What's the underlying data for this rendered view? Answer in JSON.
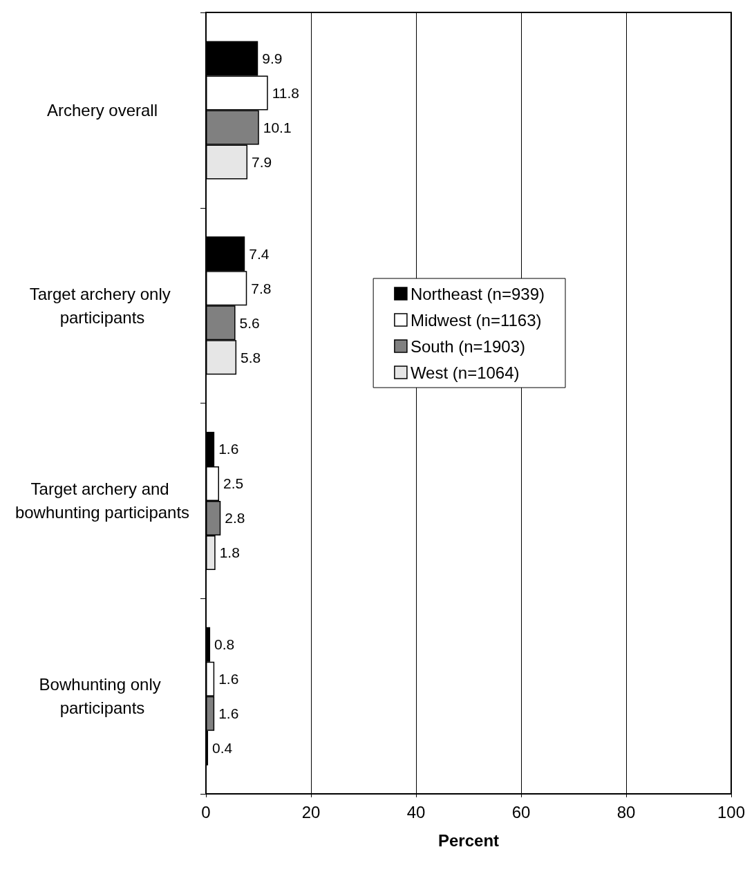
{
  "chart_data": {
    "type": "bar",
    "orientation": "horizontal",
    "xlabel": "Percent",
    "categories": [
      "Archery overall",
      "Target archery only participants",
      "Target archery and bowhunting participants",
      "Bowhunting only participants"
    ],
    "series": [
      {
        "name": "Northeast (n=939)",
        "color": "#000000",
        "values": [
          9.9,
          7.4,
          1.6,
          0.8
        ]
      },
      {
        "name": "Midwest (n=1163)",
        "color": "#ffffff",
        "values": [
          11.8,
          7.8,
          2.5,
          1.6
        ]
      },
      {
        "name": "South (n=1903)",
        "color": "#808080",
        "values": [
          10.1,
          5.6,
          2.8,
          1.6
        ]
      },
      {
        "name": "West (n=1064)",
        "color": "#e6e6e6",
        "values": [
          7.9,
          5.8,
          1.8,
          0.4
        ]
      }
    ],
    "xlim": [
      0,
      100
    ],
    "xticks": [
      0,
      20,
      40,
      60,
      80,
      100
    ],
    "grid": "x",
    "legend": "right",
    "data_labels": true
  }
}
